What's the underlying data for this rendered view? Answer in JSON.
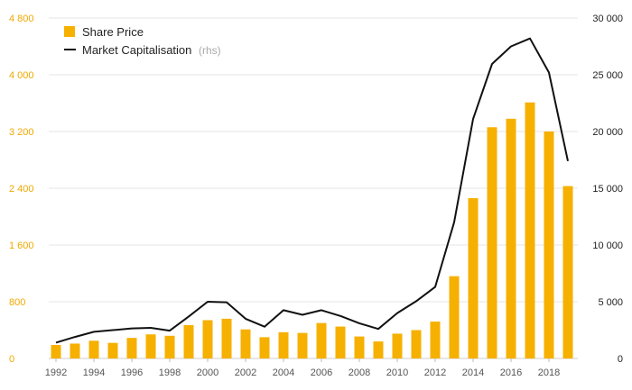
{
  "chart_data": {
    "type": "bar+line",
    "x": [
      1992,
      1993,
      1994,
      1995,
      1996,
      1997,
      1998,
      1999,
      2000,
      2001,
      2002,
      2003,
      2004,
      2005,
      2006,
      2007,
      2008,
      2009,
      2010,
      2011,
      2012,
      2013,
      2014,
      2015,
      2016,
      2017,
      2018,
      2019
    ],
    "x_tick_labels": [
      "1992",
      "1994",
      "1996",
      "1998",
      "2000",
      "2002",
      "2004",
      "2006",
      "2008",
      "2010",
      "2012",
      "2014",
      "2016",
      "2018"
    ],
    "series": [
      {
        "name": "Share Price",
        "type": "bar",
        "axis": "left",
        "color": "#f6b000",
        "values": [
          190,
          210,
          250,
          220,
          290,
          340,
          320,
          470,
          540,
          560,
          410,
          300,
          370,
          360,
          500,
          450,
          310,
          240,
          350,
          400,
          520,
          1160,
          2260,
          3260,
          3380,
          3610,
          3200,
          2430
        ]
      },
      {
        "name": "Market Capitalisation",
        "name_suffix": "(rhs)",
        "type": "line",
        "axis": "right",
        "color": "#111111",
        "values": [
          1400,
          1900,
          2350,
          2500,
          2650,
          2700,
          2450,
          3700,
          5000,
          4950,
          3500,
          2800,
          4250,
          3850,
          4250,
          3750,
          3100,
          2600,
          4000,
          5050,
          6300,
          12000,
          21100,
          25950,
          27500,
          28200,
          25200,
          17400
        ]
      }
    ],
    "y_left": {
      "ticks": [
        "0",
        "800",
        "1 600",
        "2 400",
        "3 200",
        "4 000",
        "4 800"
      ],
      "ylim": [
        0,
        4800
      ]
    },
    "y_right": {
      "ticks": [
        "0",
        "5 000",
        "10 000",
        "15 000",
        "20 000",
        "25 000",
        "30 000"
      ],
      "ylim": [
        0,
        30000
      ]
    },
    "legend_placement": "top-left",
    "grid": true,
    "colors": {
      "bar": "#f6b000",
      "line": "#111111",
      "left_axis_text": "#f0a800"
    }
  }
}
